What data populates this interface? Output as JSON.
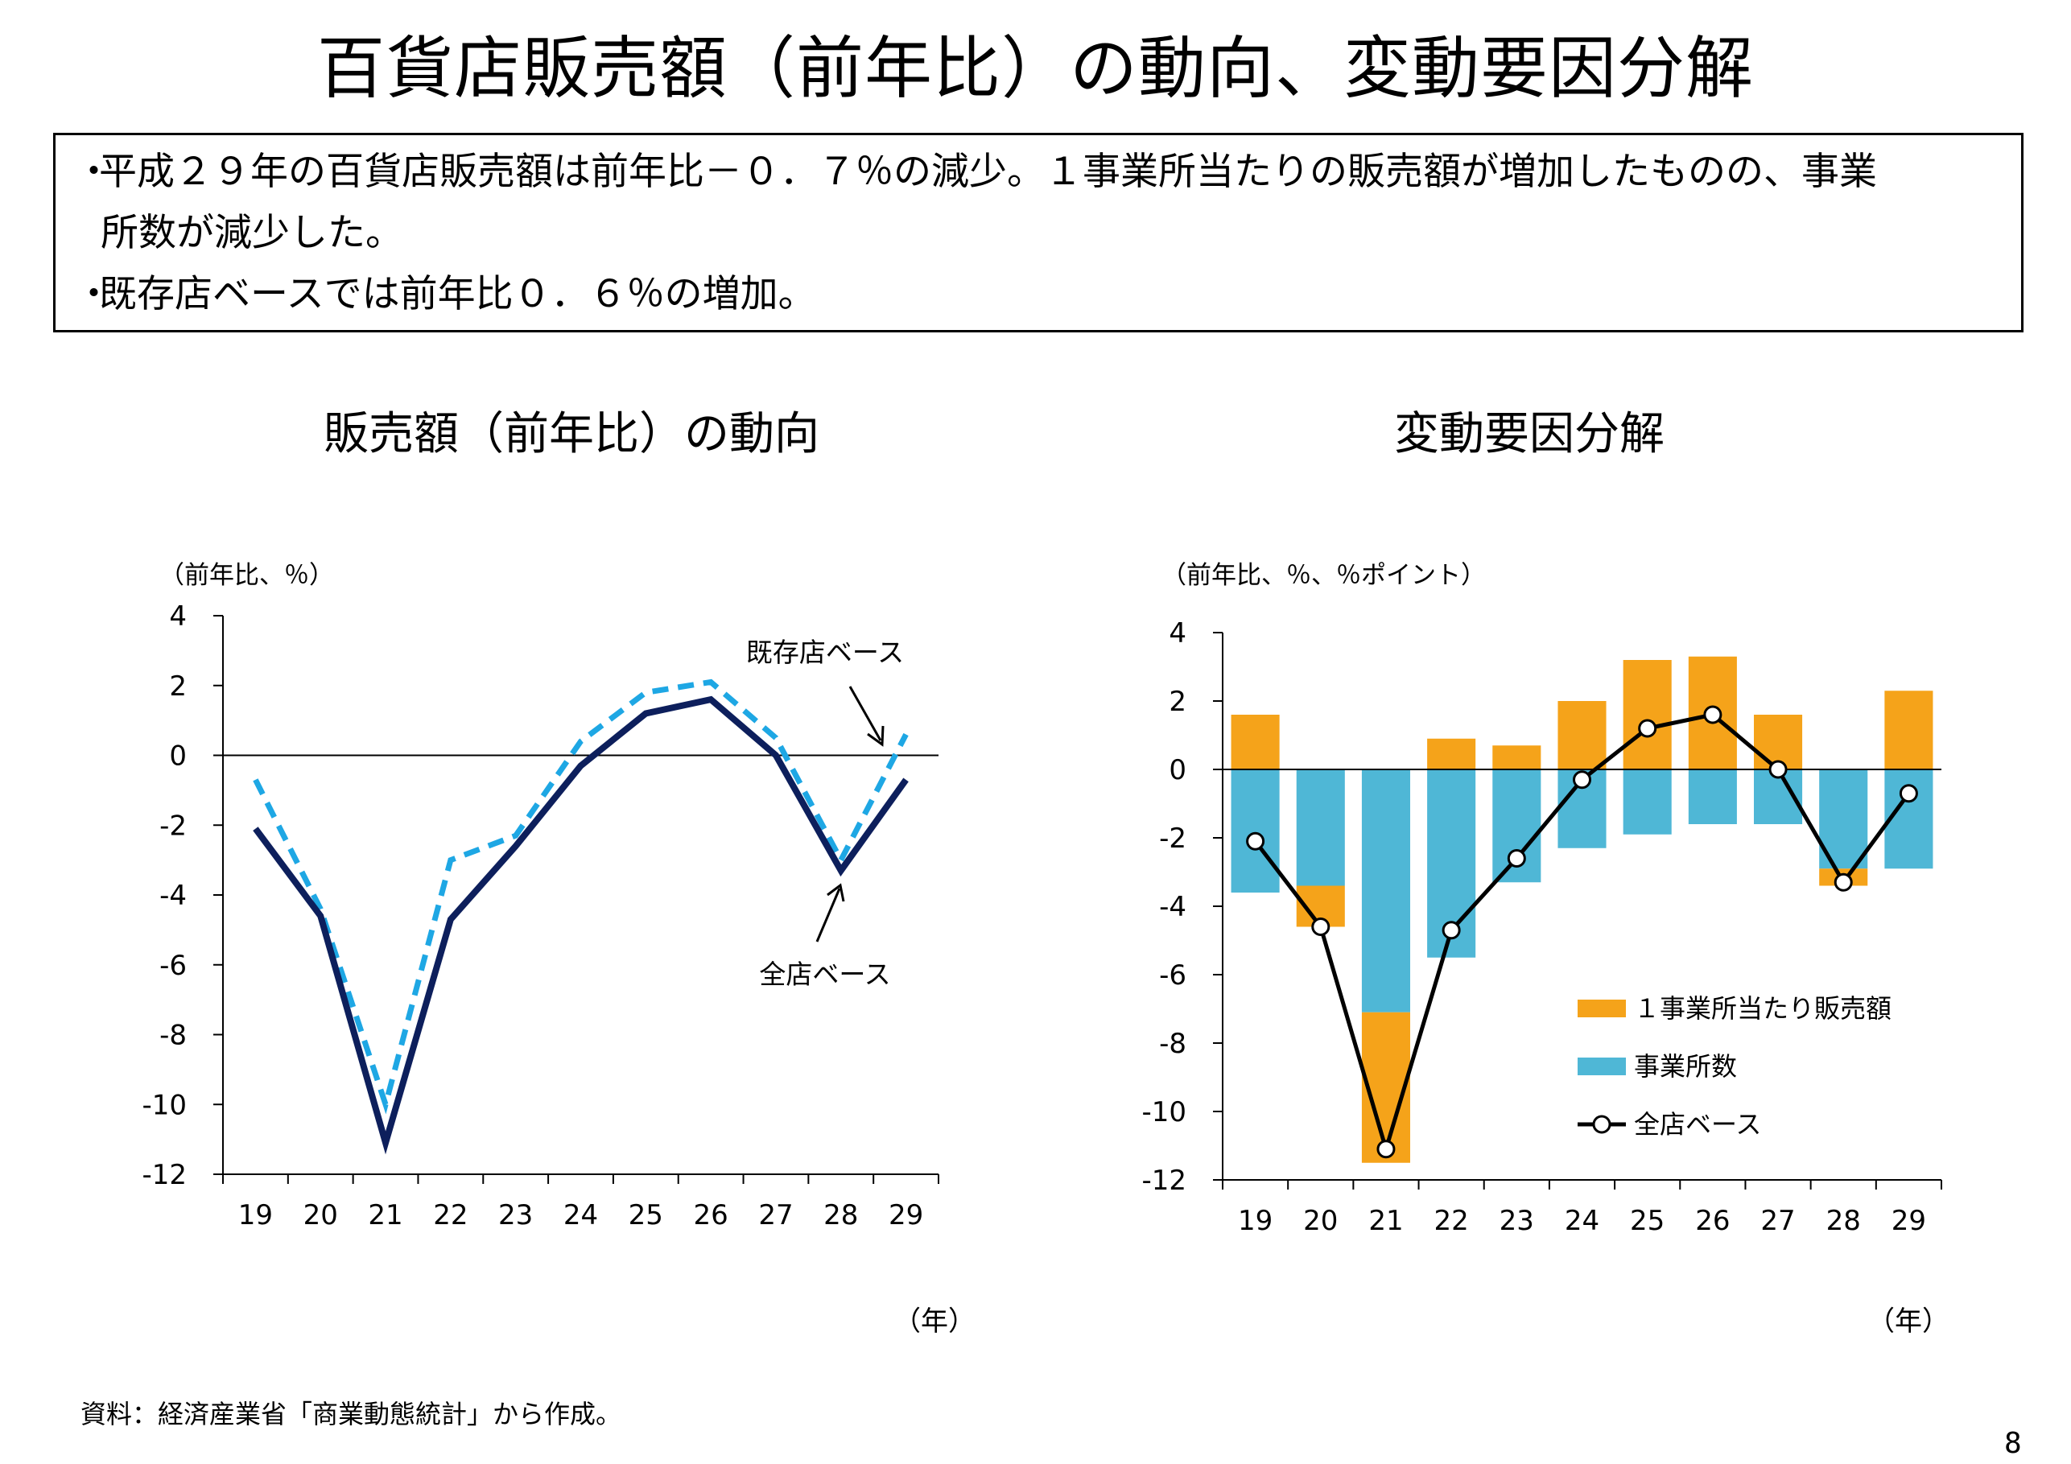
{
  "page": {
    "title": "百貨店販売額（前年比）の動向、変動要因分解",
    "bullets": [
      "平成２９年の百貨店販売額は前年比－０．７％の減少。１事業所当たりの販売額が増加したものの、事業",
      "所数が減少した。",
      "既存店ベースでは前年比０．６％の増加。"
    ],
    "bullet_mark": "・",
    "source": "資料：経済産業省「商業動態統計」から作成。",
    "page_number": "8"
  },
  "left_chart_text": {
    "title": "販売額（前年比）の動向",
    "unit": "（前年比、％）",
    "xunit": "（年）",
    "anno_existing": "既存店ベース",
    "anno_all": "全店ベース"
  },
  "right_chart_text": {
    "title": "変動要因分解",
    "unit": "（前年比、％、％ポイント）",
    "xunit": "（年）"
  },
  "chart_data": [
    {
      "type": "line",
      "title": "販売額（前年比）の動向",
      "ylabel": "（前年比、％）",
      "xlabel": "（年）",
      "categories": [
        "19",
        "20",
        "21",
        "22",
        "23",
        "24",
        "25",
        "26",
        "27",
        "28",
        "29"
      ],
      "ylim": [
        -12,
        4
      ],
      "yticks": [
        4,
        2,
        0,
        -2,
        -4,
        -6,
        -8,
        -10,
        -12
      ],
      "series": [
        {
          "name": "全店ベース",
          "color": "#0d1f5c",
          "style": "solid",
          "values": [
            -2.1,
            -4.6,
            -11.1,
            -4.7,
            -2.6,
            -0.3,
            1.2,
            1.6,
            0.0,
            -3.3,
            -0.7
          ]
        },
        {
          "name": "既存店ベース",
          "color": "#1ea7e4",
          "style": "dashed",
          "values": [
            -0.7,
            -4.4,
            -10.0,
            -3.0,
            -2.3,
            0.4,
            1.8,
            2.1,
            0.5,
            -3.0,
            0.6
          ]
        }
      ]
    },
    {
      "type": "bar",
      "title": "変動要因分解",
      "ylabel": "（前年比、％、％ポイント）",
      "xlabel": "（年）",
      "categories": [
        "19",
        "20",
        "21",
        "22",
        "23",
        "24",
        "25",
        "26",
        "27",
        "28",
        "29"
      ],
      "ylim": [
        -12,
        4
      ],
      "yticks": [
        4,
        2,
        0,
        -2,
        -4,
        -6,
        -8,
        -10,
        -12
      ],
      "stacked": true,
      "series": [
        {
          "name": "１事業所当たり販売額",
          "color": "#f5a31a",
          "values": [
            1.6,
            -1.2,
            -4.4,
            0.9,
            0.7,
            2.0,
            3.2,
            3.3,
            1.6,
            -0.5,
            2.3
          ]
        },
        {
          "name": "事業所数",
          "color": "#4fb7d6",
          "values": [
            -3.6,
            -3.4,
            -7.1,
            -5.5,
            -3.3,
            -2.3,
            -1.9,
            -1.6,
            -1.6,
            -2.9,
            -2.9
          ]
        },
        {
          "name": "全店ベース",
          "type": "line",
          "color": "#000000",
          "marker": "circle",
          "values": [
            -2.1,
            -4.6,
            -11.1,
            -4.7,
            -2.6,
            -0.3,
            1.2,
            1.6,
            0.0,
            -3.3,
            -0.7
          ]
        }
      ]
    }
  ]
}
